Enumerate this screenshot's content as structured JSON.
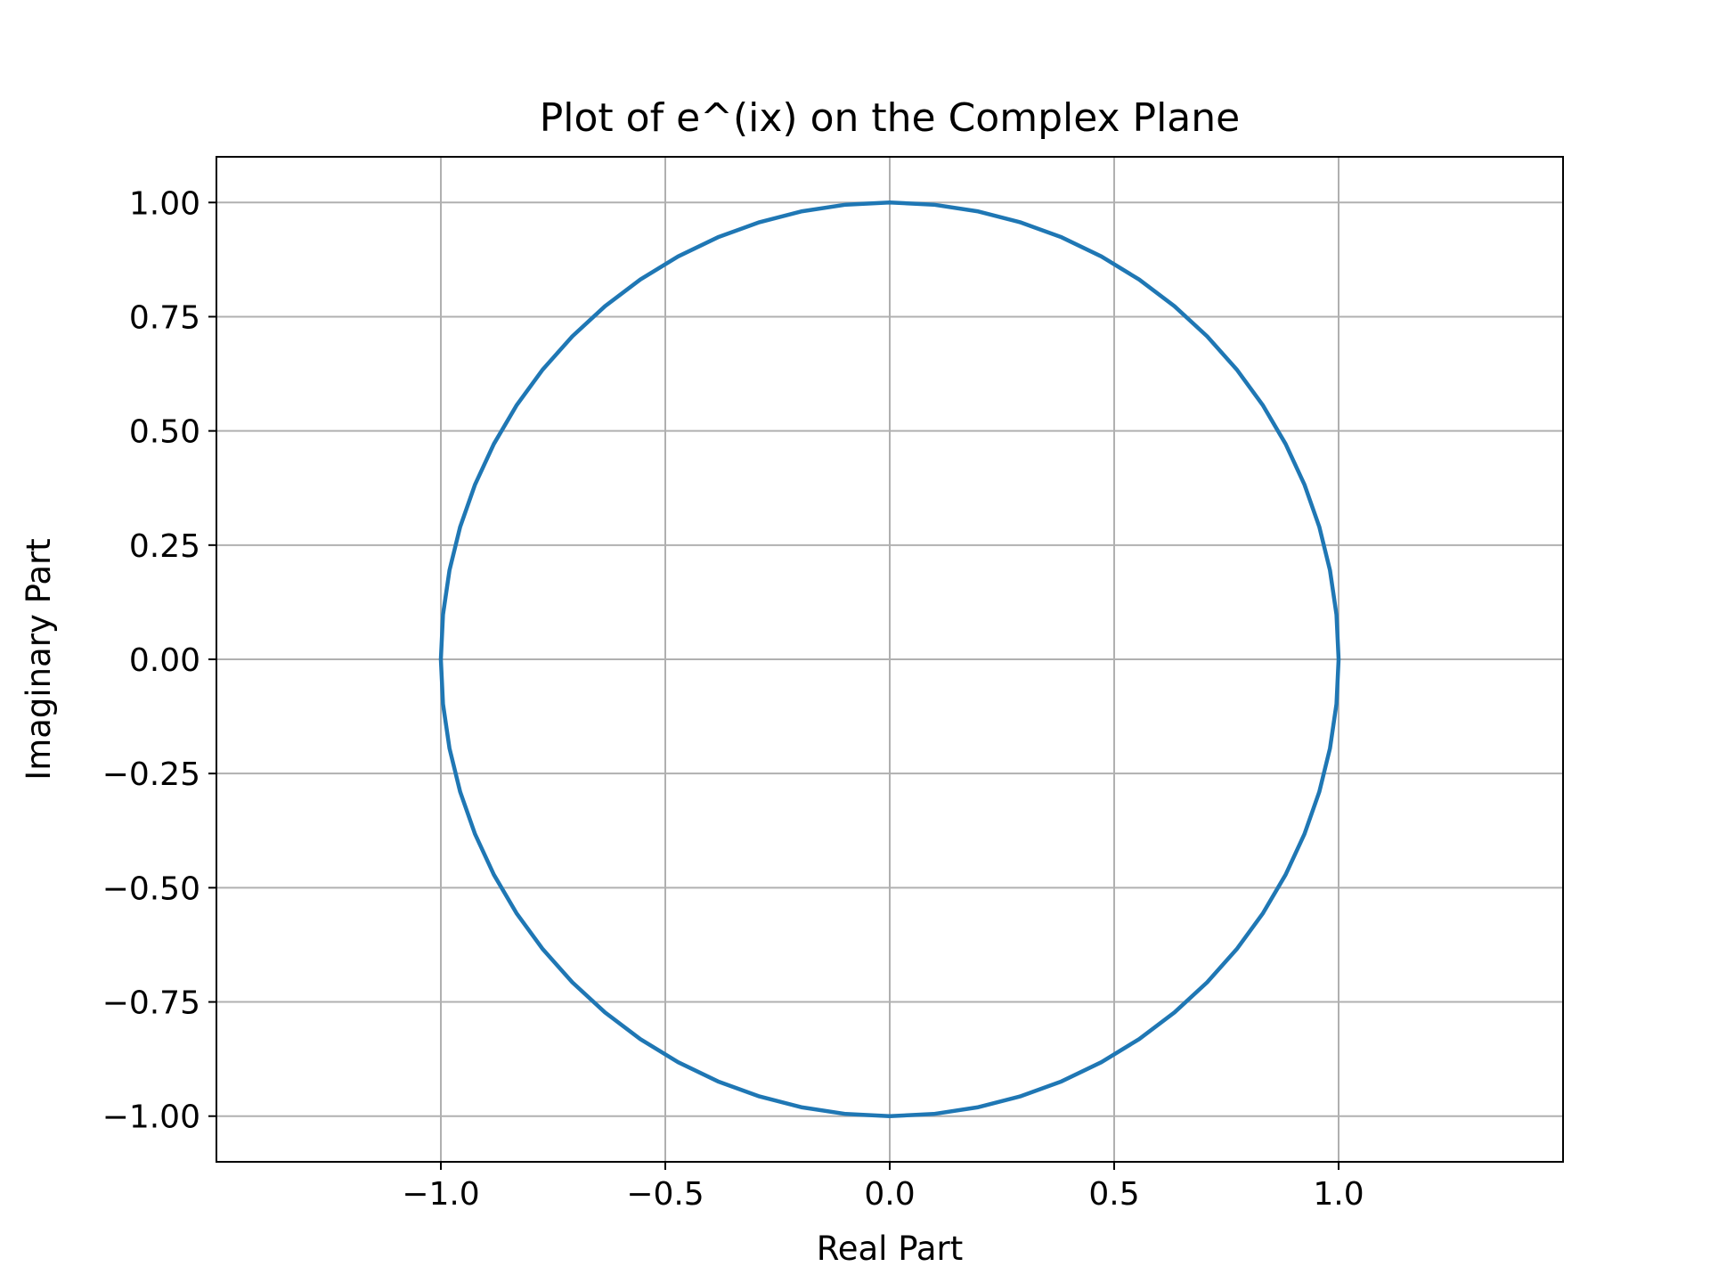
{
  "chart_data": {
    "type": "line",
    "title": "Plot of e^(ix) on the Complex Plane",
    "xlabel": "Real Part",
    "ylabel": "Imaginary Part",
    "xlim": [
      -1.5,
      1.5
    ],
    "ylim": [
      -1.1,
      1.1
    ],
    "grid": true,
    "x_ticks": [
      -1.0,
      -0.5,
      0.0,
      0.5,
      1.0
    ],
    "x_tick_labels": [
      "−1.0",
      "−0.5",
      "0.0",
      "0.5",
      "1.0"
    ],
    "y_ticks": [
      1.0,
      0.75,
      0.5,
      0.25,
      0.0,
      -0.25,
      -0.5,
      -0.75,
      -1.0
    ],
    "y_tick_labels": [
      "1.00",
      "0.75",
      "0.50",
      "0.25",
      "0.00",
      "−0.25",
      "−0.50",
      "−0.75",
      "−1.00"
    ],
    "series": [
      {
        "color": "#1f77b4",
        "x": [
          1.0,
          0.9952,
          0.9808,
          0.9569,
          0.9239,
          0.8819,
          0.8315,
          0.773,
          0.7071,
          0.6344,
          0.5556,
          0.4714,
          0.3827,
          0.2903,
          0.1951,
          0.098,
          0.0,
          -0.098,
          -0.1951,
          -0.2903,
          -0.3827,
          -0.4714,
          -0.5556,
          -0.6344,
          -0.7071,
          -0.773,
          -0.8315,
          -0.8819,
          -0.9239,
          -0.9569,
          -0.9808,
          -0.9952,
          -1.0,
          -0.9952,
          -0.9808,
          -0.9569,
          -0.9239,
          -0.8819,
          -0.8315,
          -0.773,
          -0.7071,
          -0.6344,
          -0.5556,
          -0.4714,
          -0.3827,
          -0.2903,
          -0.1951,
          -0.098,
          0.0,
          0.098,
          0.1951,
          0.2903,
          0.3827,
          0.4714,
          0.5556,
          0.6344,
          0.7071,
          0.773,
          0.8315,
          0.8819,
          0.9239,
          0.9569,
          0.9808,
          0.9952,
          1.0
        ],
        "y": [
          0.0,
          0.098,
          0.1951,
          0.2903,
          0.3827,
          0.4714,
          0.5556,
          0.6344,
          0.7071,
          0.773,
          0.8315,
          0.8819,
          0.9239,
          0.9569,
          0.9808,
          0.9952,
          1.0,
          0.9952,
          0.9808,
          0.9569,
          0.9239,
          0.8819,
          0.8315,
          0.773,
          0.7071,
          0.6344,
          0.5556,
          0.4714,
          0.3827,
          0.2903,
          0.1951,
          0.098,
          0.0,
          -0.098,
          -0.1951,
          -0.2903,
          -0.3827,
          -0.4714,
          -0.5556,
          -0.6344,
          -0.7071,
          -0.773,
          -0.8315,
          -0.8819,
          -0.9239,
          -0.9569,
          -0.9808,
          -0.9952,
          -1.0,
          -0.9952,
          -0.9808,
          -0.9569,
          -0.9239,
          -0.8819,
          -0.8315,
          -0.773,
          -0.7071,
          -0.6344,
          -0.5556,
          -0.4714,
          -0.3827,
          -0.2903,
          -0.1951,
          -0.098,
          0.0
        ]
      }
    ]
  }
}
